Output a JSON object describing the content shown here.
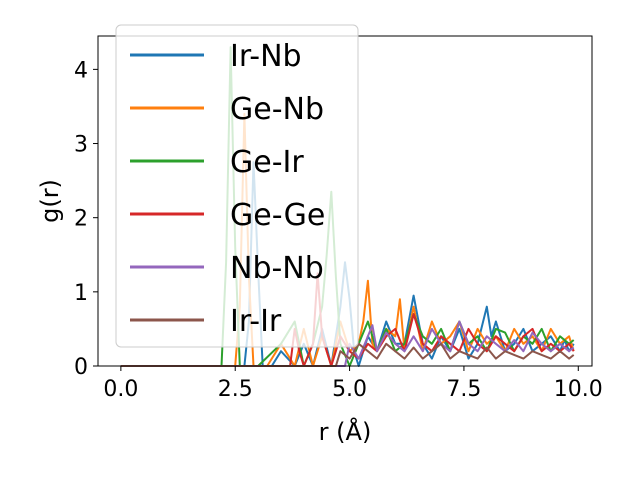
{
  "chart_data": {
    "type": "line",
    "title": "",
    "xlabel": "r (Å)",
    "ylabel": "g(r)",
    "xlim": [
      -0.5,
      10.3
    ],
    "ylim": [
      0,
      4.45
    ],
    "xticks": [
      0,
      2.5,
      5,
      7.5,
      10
    ],
    "xtick_labels": [
      "0.0",
      "2.5",
      "5.0",
      "7.5",
      "10.0"
    ],
    "yticks": [
      0,
      1,
      2,
      3,
      4
    ],
    "ytick_labels": [
      "0",
      "1",
      "2",
      "3",
      "4"
    ],
    "grid": false,
    "legend_position": "upper-left",
    "series": [
      {
        "name": "Ir-Nb",
        "color": "#1f77b4",
        "x": [
          0,
          2.7,
          2.8,
          2.9,
          3.0,
          3.1,
          3.2,
          3.3,
          3.5,
          3.8,
          4.0,
          4.2,
          4.4,
          4.6,
          4.8,
          4.9,
          5.0,
          5.1,
          5.2,
          5.4,
          5.6,
          5.8,
          6.0,
          6.2,
          6.4,
          6.6,
          6.8,
          7.0,
          7.2,
          7.4,
          7.6,
          7.8,
          8.0,
          8.1,
          8.2,
          8.4,
          8.6,
          8.8,
          9.0,
          9.2,
          9.4,
          9.6,
          9.7,
          9.8,
          9.9
        ],
        "y": [
          0,
          0,
          0.6,
          2.75,
          1.3,
          0,
          0,
          0,
          0.2,
          0,
          0.3,
          0,
          0.5,
          0,
          0.8,
          1.4,
          0.9,
          0.2,
          0,
          0.4,
          0.2,
          0.6,
          0.3,
          0.3,
          0.95,
          0.3,
          0.1,
          0.4,
          0.2,
          0.5,
          0.1,
          0.3,
          0.8,
          0.4,
          0.6,
          0.2,
          0.3,
          0.5,
          0.2,
          0.3,
          0.4,
          0.2,
          0.35,
          0.2,
          0.3
        ]
      },
      {
        "name": "Ge-Nb",
        "color": "#ff7f0e",
        "x": [
          0,
          2.5,
          2.6,
          2.7,
          2.8,
          2.9,
          3.0,
          3.2,
          3.5,
          3.8,
          4.0,
          4.2,
          4.4,
          4.6,
          4.8,
          5.0,
          5.2,
          5.3,
          5.4,
          5.5,
          5.6,
          5.8,
          6.0,
          6.1,
          6.2,
          6.4,
          6.6,
          6.8,
          7.0,
          7.2,
          7.4,
          7.6,
          7.8,
          8.0,
          8.2,
          8.4,
          8.6,
          8.8,
          9.0,
          9.2,
          9.4,
          9.6,
          9.8,
          9.9
        ],
        "y": [
          0,
          0,
          0.8,
          3.4,
          1.2,
          0,
          0,
          0,
          0.3,
          0,
          0.5,
          0,
          0.4,
          0,
          0.6,
          0.2,
          0.3,
          0.6,
          1.15,
          0.3,
          0.2,
          0.5,
          0.4,
          0.9,
          0.2,
          0.8,
          0.2,
          0.6,
          0.3,
          0.4,
          0.6,
          0.2,
          0.5,
          0.3,
          0.4,
          0.2,
          0.5,
          0.3,
          0.4,
          0.2,
          0.5,
          0.3,
          0.4,
          0.2
        ]
      },
      {
        "name": "Ge-Ir",
        "color": "#2ca02c",
        "x": [
          0,
          2.2,
          2.3,
          2.4,
          2.5,
          2.6,
          2.8,
          3.0,
          3.5,
          3.8,
          4.0,
          4.2,
          4.4,
          4.5,
          4.6,
          4.7,
          4.8,
          5.0,
          5.2,
          5.4,
          5.6,
          5.8,
          6.0,
          6.2,
          6.4,
          6.6,
          6.8,
          7.0,
          7.2,
          7.4,
          7.6,
          7.8,
          8.0,
          8.2,
          8.4,
          8.6,
          8.8,
          9.0,
          9.2,
          9.4,
          9.6,
          9.8,
          9.9
        ],
        "y": [
          0,
          0,
          1.4,
          4.3,
          1.6,
          0,
          0,
          0,
          0.3,
          0.6,
          0,
          0.3,
          0.8,
          1.5,
          2.35,
          1.2,
          0.3,
          0,
          0.3,
          0.6,
          0.2,
          0.5,
          0.2,
          0.3,
          0.7,
          0.4,
          0.3,
          0.5,
          0.2,
          0.6,
          0.3,
          0.4,
          0.2,
          0.5,
          0.45,
          0.2,
          0.4,
          0.3,
          0.5,
          0.2,
          0.4,
          0.3,
          0.35
        ]
      },
      {
        "name": "Ge-Ge",
        "color": "#d62728",
        "x": [
          0,
          3.7,
          3.8,
          3.9,
          4.0,
          4.2,
          4.3,
          4.4,
          4.6,
          4.8,
          5.0,
          5.2,
          5.4,
          5.6,
          5.8,
          6.0,
          6.2,
          6.4,
          6.6,
          6.8,
          7.0,
          7.2,
          7.4,
          7.6,
          7.8,
          8.0,
          8.2,
          8.4,
          8.6,
          8.8,
          9.0,
          9.2,
          9.4,
          9.6,
          9.8,
          9.9
        ],
        "y": [
          0,
          0,
          0.5,
          0.2,
          0,
          0.3,
          1.25,
          0.4,
          0,
          0.4,
          0.2,
          0.1,
          0.3,
          0.2,
          0.4,
          0.5,
          0.2,
          0.7,
          0.3,
          0.2,
          0.4,
          0.3,
          0.2,
          0.5,
          0.3,
          0.2,
          0.4,
          0.3,
          0.2,
          0.4,
          0.5,
          0.2,
          0.3,
          0.2,
          0.3,
          0.2
        ]
      },
      {
        "name": "Nb-Nb",
        "color": "#9467bd",
        "x": [
          0,
          4.9,
          5.0,
          5.2,
          5.4,
          5.5,
          5.6,
          5.8,
          6.0,
          6.2,
          6.4,
          6.6,
          6.8,
          7.0,
          7.2,
          7.4,
          7.6,
          7.8,
          8.0,
          8.2,
          8.4,
          8.6,
          8.8,
          9.0,
          9.2,
          9.4,
          9.6,
          9.8,
          9.9
        ],
        "y": [
          0,
          0,
          0.3,
          0.1,
          0.4,
          0.55,
          0.2,
          0.45,
          0.3,
          0.2,
          0.4,
          0.2,
          0.5,
          0.3,
          0.2,
          0.6,
          0.3,
          0.2,
          0.4,
          0.3,
          0.2,
          0.35,
          0.2,
          0.45,
          0.3,
          0.2,
          0.3,
          0.2,
          0.25
        ]
      },
      {
        "name": "Ir-Ir",
        "color": "#8c564b",
        "x": [
          0,
          4.7,
          4.8,
          5.0,
          5.2,
          5.4,
          5.6,
          5.8,
          6.0,
          6.2,
          6.4,
          6.6,
          6.8,
          7.0,
          7.2,
          7.4,
          7.6,
          7.8,
          8.0,
          8.2,
          8.4,
          8.6,
          8.8,
          9.0,
          9.2,
          9.4,
          9.6,
          9.8,
          9.9
        ],
        "y": [
          0,
          0,
          0.2,
          0.1,
          0.3,
          0.2,
          0.1,
          0.3,
          0.2,
          0.1,
          0.25,
          0.1,
          0.2,
          0.3,
          0.1,
          0.2,
          0.15,
          0.1,
          0.25,
          0.1,
          0.2,
          0.15,
          0.1,
          0.2,
          0.15,
          0.1,
          0.2,
          0.1,
          0.15
        ]
      }
    ]
  }
}
